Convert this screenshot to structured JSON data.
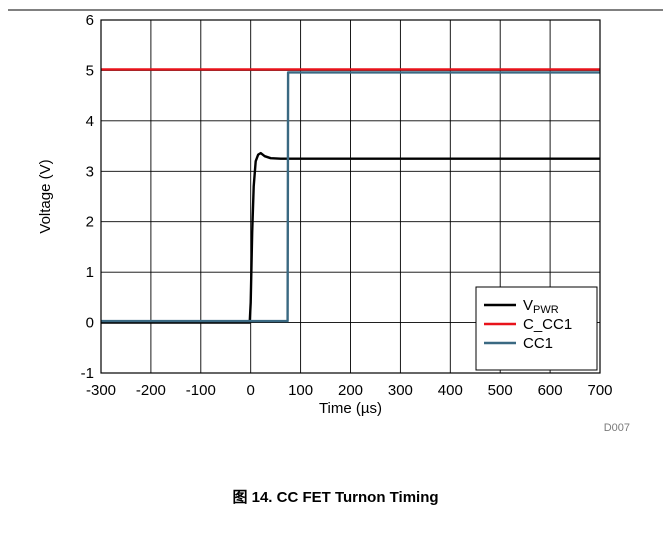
{
  "chart_data": {
    "type": "line",
    "xlabel_prefix": "Time (",
    "xlabel_unit": "µs",
    "xlabel_suffix": ")",
    "ylabel": "Voltage (V)",
    "xlim": [
      -300,
      700
    ],
    "ylim": [
      -1,
      6
    ],
    "x_ticks": [
      -300,
      -200,
      -100,
      0,
      100,
      200,
      300,
      400,
      500,
      600,
      700
    ],
    "y_ticks": [
      -1,
      0,
      1,
      2,
      3,
      4,
      5,
      6
    ],
    "grid": true,
    "legend_position": "bottom-right",
    "series": [
      {
        "name": "V",
        "name_subscript": "PWR",
        "color": "#000000",
        "points": [
          [
            -300,
            0.0
          ],
          [
            -2,
            0.0
          ],
          [
            0,
            0.4
          ],
          [
            3,
            1.8
          ],
          [
            6,
            2.7
          ],
          [
            10,
            3.2
          ],
          [
            15,
            3.33
          ],
          [
            20,
            3.36
          ],
          [
            28,
            3.3
          ],
          [
            40,
            3.26
          ],
          [
            60,
            3.25
          ],
          [
            700,
            3.25
          ]
        ]
      },
      {
        "name": "C_CC1",
        "color": "#e8131b",
        "points": [
          [
            -300,
            5.02
          ],
          [
            700,
            5.02
          ]
        ]
      },
      {
        "name": "CC1",
        "color": "#3a6982",
        "points": [
          [
            -300,
            0.03
          ],
          [
            74,
            0.03
          ],
          [
            75,
            4.96
          ],
          [
            700,
            4.96
          ]
        ]
      }
    ],
    "figure_code": "D007"
  },
  "caption": "图 14. CC FET Turnon Timing"
}
